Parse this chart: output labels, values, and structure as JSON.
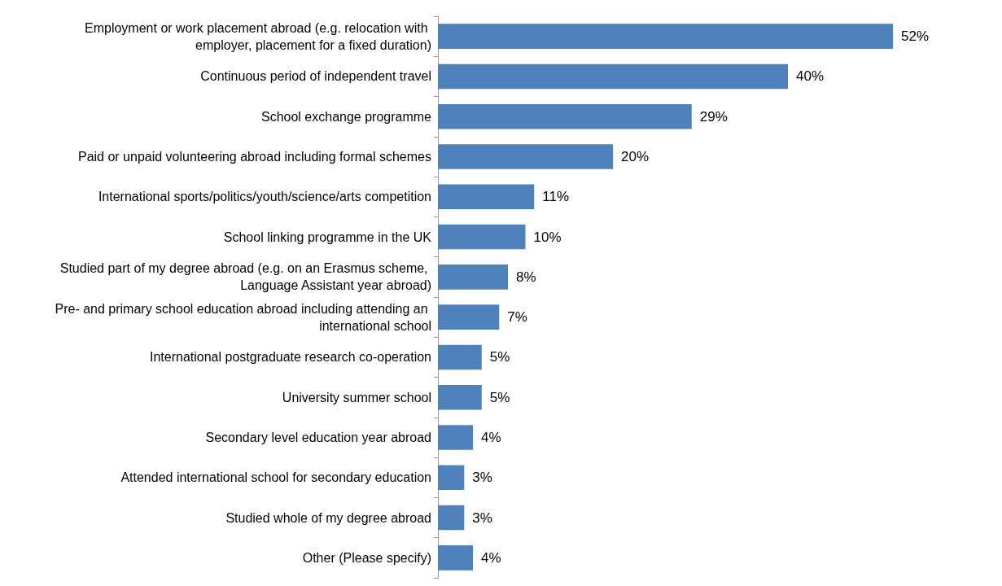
{
  "chart_data": {
    "type": "bar",
    "orientation": "horizontal",
    "color": "#4f81bd",
    "categories": [
      "Employment or work placement abroad (e.g. relocation with employer, placement for a fixed duration)",
      "Continuous period of independent travel",
      "School exchange programme",
      "Paid or unpaid volunteering abroad including formal schemes",
      "International sports/politics/youth/science/arts competition",
      "School linking programme in the UK",
      "Studied part of my degree abroad (e.g. on an Erasmus scheme, Language Assistant year abroad)",
      "Pre- and primary school education abroad including attending an international school",
      "International postgraduate research co-operation",
      "University summer school",
      "Secondary level education year abroad",
      "Attended international school for secondary education",
      "Studied whole of my degree abroad",
      "Other (Please specify)"
    ],
    "values": [
      52,
      40,
      29,
      20,
      11,
      10,
      8,
      7,
      5,
      5,
      4,
      3,
      3,
      4
    ],
    "value_labels": [
      "52%",
      "40%",
      "29%",
      "20%",
      "11%",
      "10%",
      "8%",
      "7%",
      "5%",
      "5%",
      "4%",
      "3%",
      "3%",
      "4%"
    ]
  }
}
